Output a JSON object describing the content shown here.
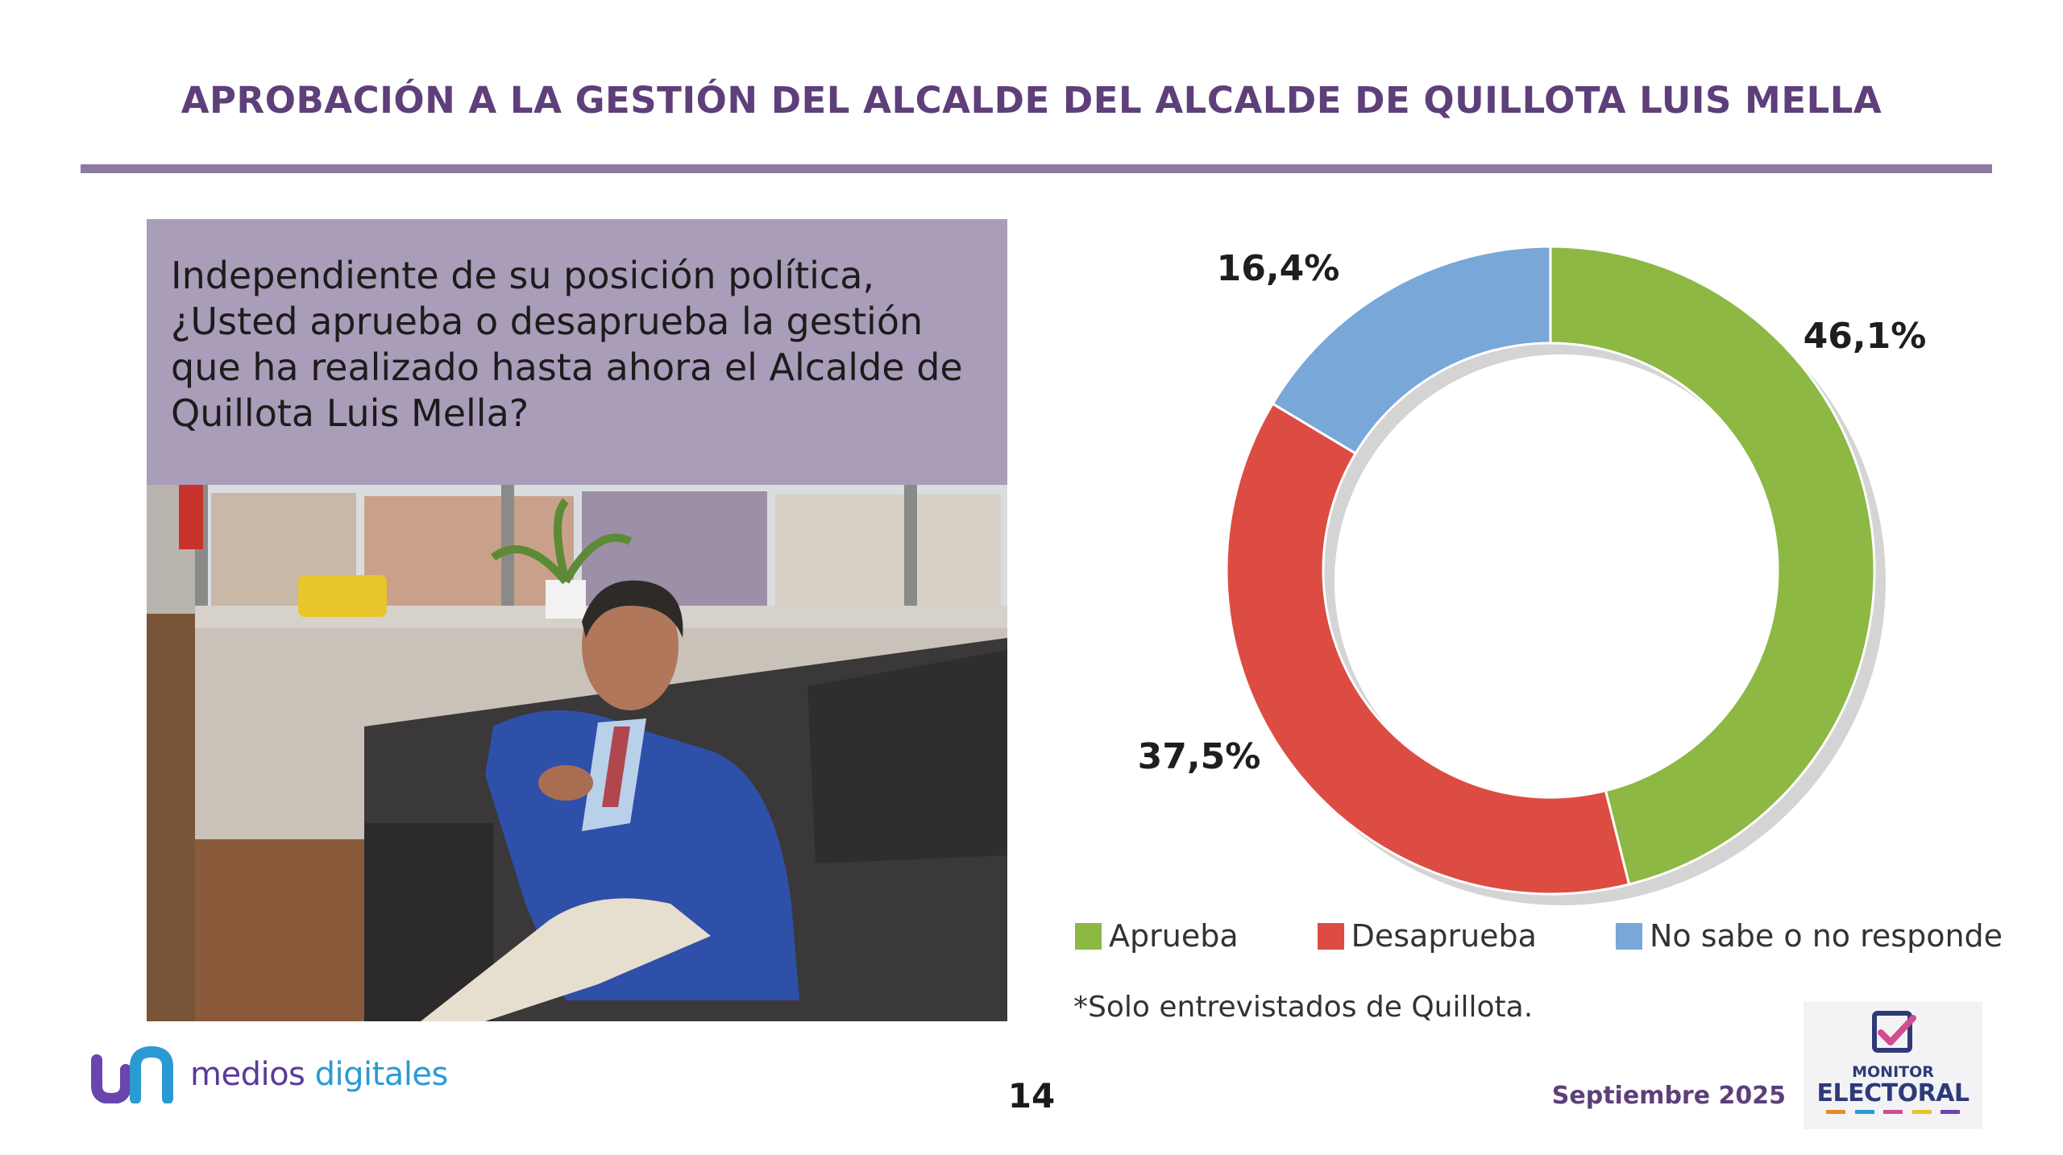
{
  "header": {
    "title": "APROBACIÓN A LA GESTIÓN DEL ALCALDE DEL ALCALDE DE QUILLOTA LUIS MELLA"
  },
  "question": {
    "text": "Independiente de su posición política, ¿Usted aprueba o desaprueba la gestión que ha realizado hasta ahora el Alcalde de Quillota Luis Mella?"
  },
  "chart_data": {
    "type": "pie",
    "style": "donut",
    "title": "",
    "categories": [
      "Aprueba",
      "Desaprueba",
      "No sabe o no responde"
    ],
    "values": [
      46.1,
      37.5,
      16.4
    ],
    "value_labels": [
      "46,1%",
      "37,5%",
      "16,4%"
    ],
    "colors": [
      "#8cb843",
      "#dc4c42",
      "#78a7d8"
    ],
    "legend_position": "bottom"
  },
  "legend": {
    "items": [
      {
        "label": "Aprueba",
        "color": "#8cb843"
      },
      {
        "label": "Desaprueba",
        "color": "#dc4c42"
      },
      {
        "label": "No sabe o no responde",
        "color": "#78a7d8"
      }
    ]
  },
  "footnote": "*Solo entrevistados de Quillota.",
  "footer": {
    "page_number": "14",
    "date": "Septiembre 2025",
    "brand_left": {
      "part1": "medios ",
      "part2": "digitales"
    },
    "brand_right": {
      "word1": "MONITOR",
      "word2": "ELECTORAL"
    }
  },
  "colors": {
    "title": "#5e3f7a",
    "rule": "#8c7a9f",
    "question_box": "#aa9db9"
  },
  "icons": {
    "brand_left": "medios-digitales-logo-icon",
    "brand_right": "ballot-checkmark-icon"
  }
}
